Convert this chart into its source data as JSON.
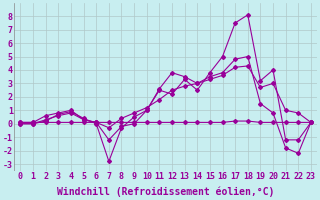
{
  "xlabel": "Windchill (Refroidissement éolien,°C)",
  "background_color": "#c8eef0",
  "grid_color": "#b0c8c8",
  "line_color": "#990099",
  "x": [
    0,
    1,
    2,
    3,
    4,
    5,
    6,
    7,
    8,
    9,
    10,
    11,
    12,
    13,
    14,
    15,
    16,
    17,
    18,
    19,
    20,
    21,
    22,
    23
  ],
  "series": {
    "line1": [
      0.1,
      0.1,
      0.6,
      0.8,
      1.0,
      0.3,
      0.1,
      -1.2,
      -0.2,
      0.0,
      1.0,
      2.5,
      2.2,
      3.3,
      2.5,
      3.8,
      5.0,
      7.5,
      8.1,
      3.2,
      4.0,
      -1.2,
      -1.2,
      0.1
    ],
    "line2": [
      0.1,
      0.1,
      0.1,
      0.1,
      0.1,
      0.1,
      0.1,
      0.1,
      0.1,
      0.1,
      0.1,
      0.1,
      0.1,
      0.1,
      0.1,
      0.1,
      0.1,
      0.2,
      0.2,
      0.1,
      0.1,
      0.1,
      0.1,
      0.1
    ],
    "line3": [
      0.0,
      0.0,
      0.2,
      0.7,
      0.9,
      0.4,
      0.0,
      -2.8,
      -0.3,
      0.5,
      1.0,
      2.6,
      3.8,
      3.5,
      3.0,
      3.5,
      3.8,
      4.8,
      5.0,
      1.5,
      0.8,
      -1.8,
      -2.2,
      0.1
    ],
    "line4": [
      0.0,
      0.0,
      0.3,
      0.6,
      0.8,
      0.3,
      0.1,
      -0.3,
      0.4,
      0.8,
      1.2,
      1.8,
      2.5,
      2.8,
      3.0,
      3.3,
      3.6,
      4.2,
      4.3,
      2.7,
      3.0,
      1.0,
      0.8,
      0.1
    ]
  },
  "ylim": [
    -3.5,
    9.0
  ],
  "xlim": [
    -0.5,
    23.5
  ],
  "yticks": [
    -3,
    -2,
    -1,
    0,
    1,
    2,
    3,
    4,
    5,
    6,
    7,
    8
  ],
  "xticks": [
    0,
    1,
    2,
    3,
    4,
    5,
    6,
    7,
    8,
    9,
    10,
    11,
    12,
    13,
    14,
    15,
    16,
    17,
    18,
    19,
    20,
    21,
    22,
    23
  ],
  "xlabel_fontsize": 7,
  "tick_fontsize": 6,
  "marker": "D",
  "marker_size": 2,
  "line_width": 0.8
}
